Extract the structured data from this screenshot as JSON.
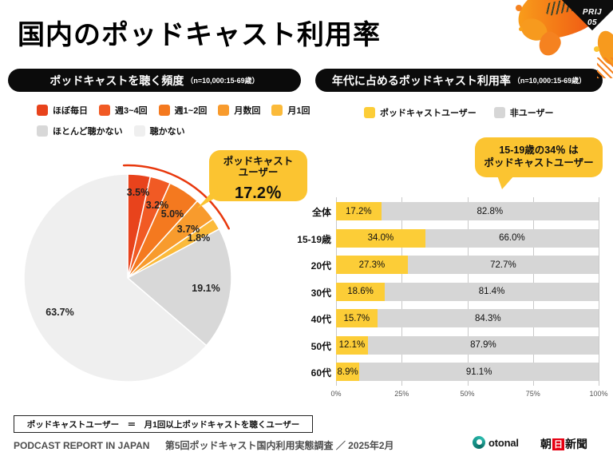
{
  "title": "国内のポッドキャスト利用率",
  "badge": {
    "line1": "PRIJ",
    "line2": "05"
  },
  "colors": {
    "accent_red": "#E8380D",
    "callout_yellow": "#FBC431",
    "user_yellow": "#FCCD37",
    "nonuser_gray": "#D6D6D6",
    "pill_black": "#0B0B0B"
  },
  "left_panel": {
    "header": "ポッドキャストを聴く頻度",
    "header_note": "（n=10,000:15-69歳）",
    "callout": {
      "line1": "ポッドキャスト",
      "line2": "ユーザー",
      "value": "17.2％"
    }
  },
  "right_panel": {
    "header": "年代に占めるポッドキャスト利用率",
    "header_note": "（n=10,000:15-69歳）",
    "callout": {
      "line1": "15-19歳の34％ は",
      "line2": "ポッドキャストユーザー"
    }
  },
  "chart_data": [
    {
      "type": "pie",
      "title": "ポッドキャストを聴く頻度",
      "labels": [
        "ほぼ毎日",
        "週3~4回",
        "週1~2回",
        "月数回",
        "月1回",
        "ほとんど聴かない",
        "聴かない"
      ],
      "values": [
        3.5,
        3.2,
        5.0,
        3.7,
        1.8,
        19.1,
        63.7
      ],
      "colors": [
        "#E8431C",
        "#F15A24",
        "#F4791F",
        "#F89B2D",
        "#FBBA3A",
        "#D8D8D8",
        "#EFEFEF"
      ],
      "start_angle_deg": 0,
      "direction": "clockwise",
      "annotation": "ポッドキャストユーザー 17.2％"
    },
    {
      "type": "bar",
      "orientation": "horizontal",
      "stacked": true,
      "title": "年代に占めるポッドキャスト利用率",
      "categories": [
        "全体",
        "15-19歳",
        "20代",
        "30代",
        "40代",
        "50代",
        "60代"
      ],
      "series": [
        {
          "name": "ポッドキャストユーザー",
          "color": "#FCCD37",
          "values": [
            17.2,
            34.0,
            27.3,
            18.6,
            15.7,
            12.1,
            8.9
          ]
        },
        {
          "name": "非ユーザー",
          "color": "#D6D6D6",
          "values": [
            82.8,
            66.0,
            72.7,
            81.4,
            84.3,
            87.9,
            91.1
          ]
        }
      ],
      "x_ticks": [
        "0%",
        "25%",
        "50%",
        "75%",
        "100%"
      ],
      "xlim": [
        0,
        100
      ],
      "grid": true,
      "legend_position": "top",
      "annotation": "15-19歳の34％ はポッドキャストユーザー"
    }
  ],
  "footer": {
    "note": "ポッドキャストユーザー　＝　月1回以上ポッドキャストを聴くユーザー",
    "report_name": "PODCAST REPORT IN JAPAN",
    "survey_name": "第5回ポッドキャスト国内利用実態調査 ／ 2025年2月",
    "otonal_label": "otonal",
    "asahi_1": "朝",
    "asahi_2": "日",
    "asahi_3": "新聞"
  }
}
